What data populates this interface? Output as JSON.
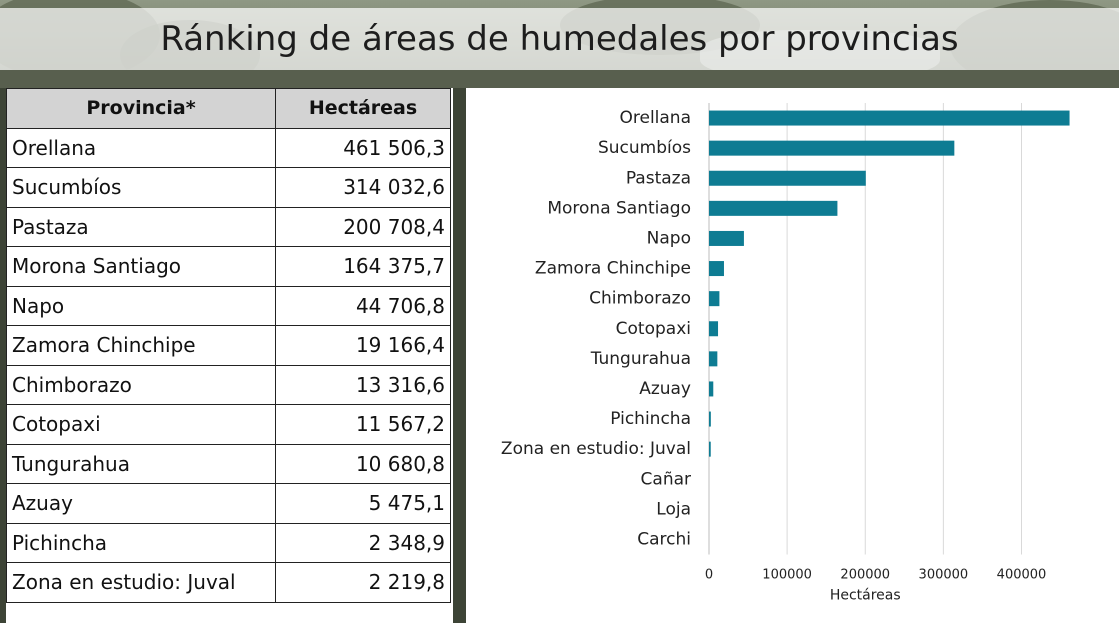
{
  "title": "Ránking de áreas de humedales por provincias",
  "table": {
    "headers": [
      "Provincia*",
      "Hectáreas"
    ],
    "rows": [
      {
        "provincia": "Orellana",
        "hectareas": "461 506,3"
      },
      {
        "provincia": "Sucumbíos",
        "hectareas": "314 032,6"
      },
      {
        "provincia": "Pastaza",
        "hectareas": "200 708,4"
      },
      {
        "provincia": "Morona Santiago",
        "hectareas": "164 375,7"
      },
      {
        "provincia": "Napo",
        "hectareas": "44 706,8"
      },
      {
        "provincia": "Zamora Chinchipe",
        "hectareas": "19 166,4"
      },
      {
        "provincia": "Chimborazo",
        "hectareas": "13 316,6"
      },
      {
        "provincia": "Cotopaxi",
        "hectareas": "11 567,2"
      },
      {
        "provincia": "Tungurahua",
        "hectareas": "10 680,8"
      },
      {
        "provincia": "Azuay",
        "hectareas": "5 475,1"
      },
      {
        "provincia": "Pichincha",
        "hectareas": "2 348,9"
      },
      {
        "provincia": "Zona en estudio: Juval",
        "hectareas": "2 219,8"
      }
    ]
  },
  "chart_data": {
    "type": "bar",
    "orientation": "horizontal",
    "categories": [
      "Orellana",
      "Sucumbíos",
      "Pastaza",
      "Morona Santiago",
      "Napo",
      "Zamora Chinchipe",
      "Chimborazo",
      "Cotopaxi",
      "Tungurahua",
      "Azuay",
      "Pichincha",
      "Zona en estudio: Juval",
      "Cañar",
      "Loja",
      "Carchi"
    ],
    "values": [
      461506.3,
      314032.6,
      200708.4,
      164375.7,
      44706.8,
      19166.4,
      13316.6,
      11567.2,
      10680.8,
      5475.1,
      2348.9,
      2219.8,
      0,
      0,
      0
    ],
    "xlabel": "Hectáreas",
    "ylabel": "",
    "xlim": [
      0,
      480000
    ],
    "xticks": [
      0,
      100000,
      200000,
      300000,
      400000
    ],
    "grid": "vertical",
    "bar_color": "#0e7c93"
  }
}
